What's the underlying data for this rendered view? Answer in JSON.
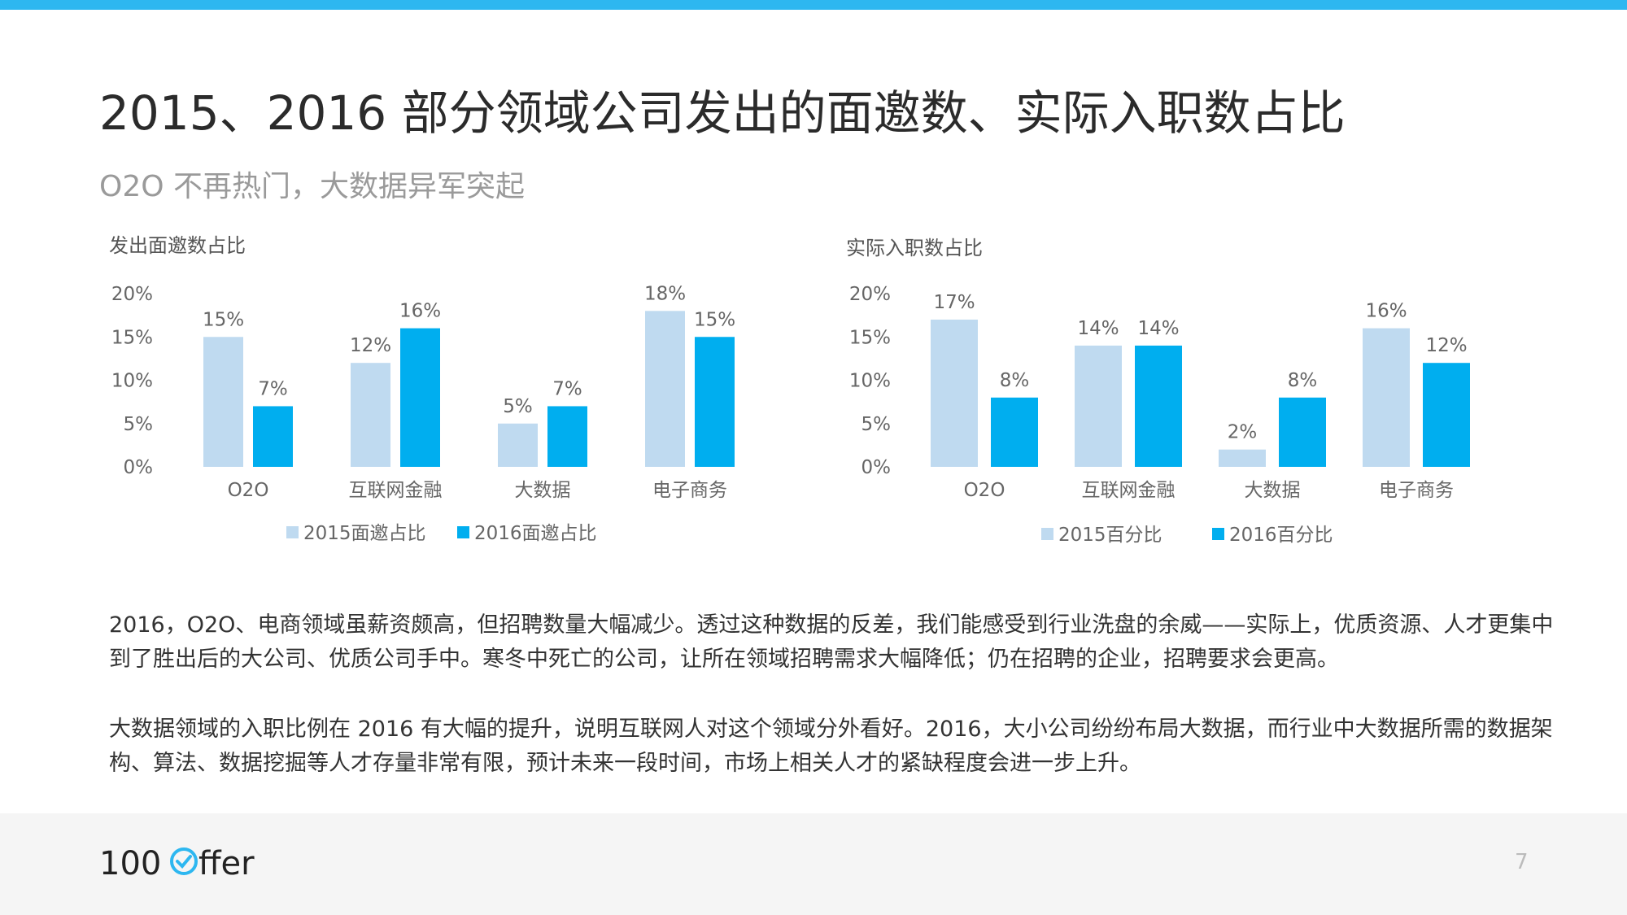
{
  "title": "2015、2016 部分领域公司发出的面邀数、实际入职数占比",
  "subtitle": "O2O 不再热门，大数据异军突起",
  "colors": {
    "accent": "#2db7f0",
    "series_2015": "#bfdaf0",
    "series_2016": "#00aeef"
  },
  "logo": {
    "text": "100ffer",
    "icon": "check-circle-icon"
  },
  "chart_data": [
    {
      "type": "bar",
      "title": "发出面邀数占比",
      "categories": [
        "O2O",
        "互联网金融",
        "大数据",
        "电子商务"
      ],
      "series": [
        {
          "name": "2015面邀占比",
          "values": [
            15,
            12,
            5,
            18
          ],
          "labels": [
            "15%",
            "12%",
            "5%",
            "18%"
          ]
        },
        {
          "name": "2016面邀占比",
          "values": [
            7,
            16,
            7,
            15
          ],
          "labels": [
            "7%",
            "16%",
            "7%",
            "15%"
          ]
        }
      ],
      "yticks": [
        "0%",
        "5%",
        "10%",
        "15%",
        "20%"
      ],
      "ylim": [
        0,
        20
      ],
      "grid": false,
      "legend": "bottom"
    },
    {
      "type": "bar",
      "title": "实际入职数占比",
      "categories": [
        "O2O",
        "互联网金融",
        "大数据",
        "电子商务"
      ],
      "series": [
        {
          "name": "2015百分比",
          "values": [
            17,
            14,
            2,
            16
          ],
          "labels": [
            "17%",
            "14%",
            "2%",
            "16%"
          ]
        },
        {
          "name": "2016百分比",
          "values": [
            8,
            14,
            8,
            12
          ],
          "labels": [
            "8%",
            "14%",
            "8%",
            "12%"
          ]
        }
      ],
      "yticks": [
        "0%",
        "5%",
        "10%",
        "15%",
        "20%"
      ],
      "ylim": [
        0,
        20
      ],
      "grid": false,
      "legend": "bottom"
    }
  ],
  "paragraphs": [
    "2016，O2O、电商领域虽薪资颇高，但招聘数量大幅减少。透过这种数据的反差，我们能感受到行业洗盘的余威——实际上，优质资源、人才更集中到了胜出后的大公司、优质公司手中。寒冬中死亡的公司，让所在领域招聘需求大幅降低；仍在招聘的企业，招聘要求会更高。",
    "大数据领域的入职比例在 2016 有大幅的提升，说明互联网人对这个领域分外看好。2016，大小公司纷纷布局大数据，而行业中大数据所需的数据架构、算法、数据挖掘等人才存量非常有限，预计未来一段时间，市场上相关人才的紧缺程度会进一步上升。"
  ],
  "page_number": "7"
}
